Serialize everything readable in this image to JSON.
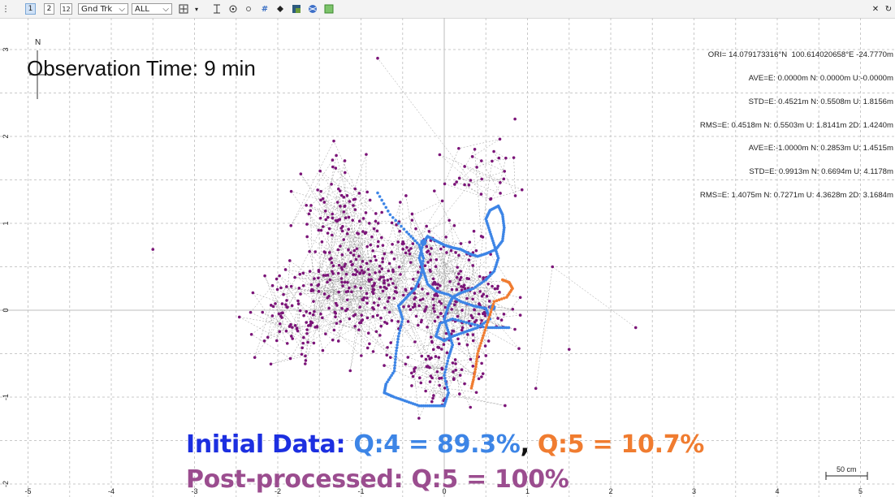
{
  "toolbar": {
    "btn1": "1",
    "btn2": "2",
    "btn12": "12",
    "plot_type": "Gnd Trk",
    "quality": "ALL",
    "icons": [
      "crosshair-icon",
      "dropdown-arrow-icon",
      "vertical-range-icon",
      "center-target-icon",
      "small-dot-icon",
      "grid-icon",
      "point-icon",
      "map-icon",
      "globe-icon",
      "image-icon"
    ],
    "right_icons": [
      "close-icon",
      "refresh-icon"
    ]
  },
  "overlay": {
    "north": "N",
    "observation_time": "Observation Time: 9 min",
    "stats_lines": [
      "ORI= 14.079173316°N  100.614020658°E -24.7770m",
      "AVE=E: 0.0000m N: 0.0000m U:-0.0000m",
      "STD=E: 0.4521m N: 0.5508m U: 1.8156m",
      "RMS=E: 0.4518m N: 0.5503m U: 1.8141m 2D: 1.4240m",
      "AVE=E:-1.0000m N: 0.2853m U: 1.4515m",
      "STD=E: 0.9913m N: 0.6694m U: 4.1178m",
      "RMS=E: 1.4075m N: 0.7271m U: 4.3628m 2D: 3.1684m"
    ],
    "initial_label": "Initial Data:",
    "q4_text": "Q:4 = 89.3%",
    "comma": ",",
    "q5_text": "Q:5 = 10.7%",
    "post_label": "Post-processed:",
    "post_q5": "Q:5 = 100%",
    "scale": "50 cm"
  },
  "axes": {
    "x_ticks": [
      "-5",
      "-4",
      "-3",
      "-2",
      "-1",
      "0",
      "1",
      "2",
      "3",
      "4",
      "5"
    ],
    "y_ticks": [
      "3",
      "2",
      "1",
      "0",
      "-1",
      "-2"
    ]
  },
  "colors": {
    "post_processed": "#7b1478",
    "q4": "#3d85e6",
    "q5": "#f07c30",
    "initial_label": "#1c2fe0",
    "post_label": "#9b4d8f",
    "grid": "#c9c9c9"
  }
}
